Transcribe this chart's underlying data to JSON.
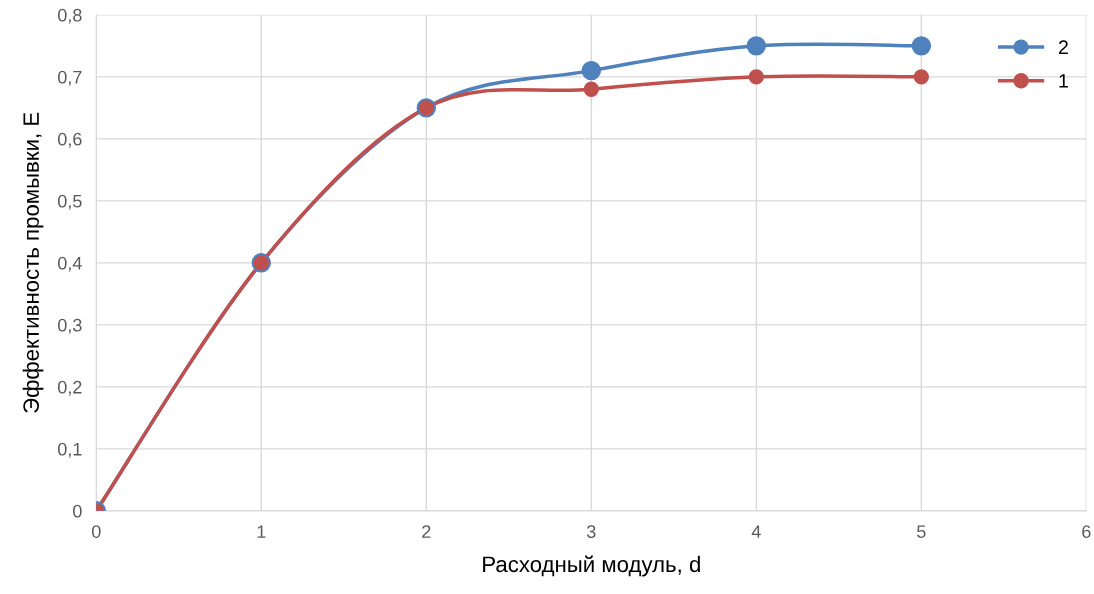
{
  "chart_data": {
    "type": "line",
    "xlabel": "Расходный модуль, d",
    "ylabel": "Эффективность промывки, E",
    "x": [
      0,
      1,
      2,
      3,
      4,
      5
    ],
    "series": [
      {
        "name": "2",
        "color": "#4f81bd",
        "values": [
          0,
          0.4,
          0.65,
          0.71,
          0.75,
          0.75
        ]
      },
      {
        "name": "1",
        "color": "#c0504d",
        "values": [
          0,
          0.4,
          0.65,
          0.68,
          0.7,
          0.7
        ]
      }
    ],
    "xlim": [
      0,
      6
    ],
    "xticks": [
      0,
      1,
      2,
      3,
      4,
      5,
      6
    ],
    "ylim": [
      0,
      0.8
    ],
    "yticks": [
      0,
      {
        "value": 0.1,
        "label": "0,1"
      },
      {
        "value": 0.2,
        "label": "0,2"
      },
      {
        "value": 0.3,
        "label": "0,3"
      },
      {
        "value": 0.4,
        "label": "0,4"
      },
      {
        "value": 0.5,
        "label": "0,5"
      },
      {
        "value": 0.6,
        "label": "0,6"
      },
      {
        "value": 0.7,
        "label": "0,7"
      },
      {
        "value": 0.8,
        "label": "0,8"
      }
    ],
    "grid": true,
    "legend": "top right",
    "marker": "circle",
    "line_style": "solid"
  }
}
